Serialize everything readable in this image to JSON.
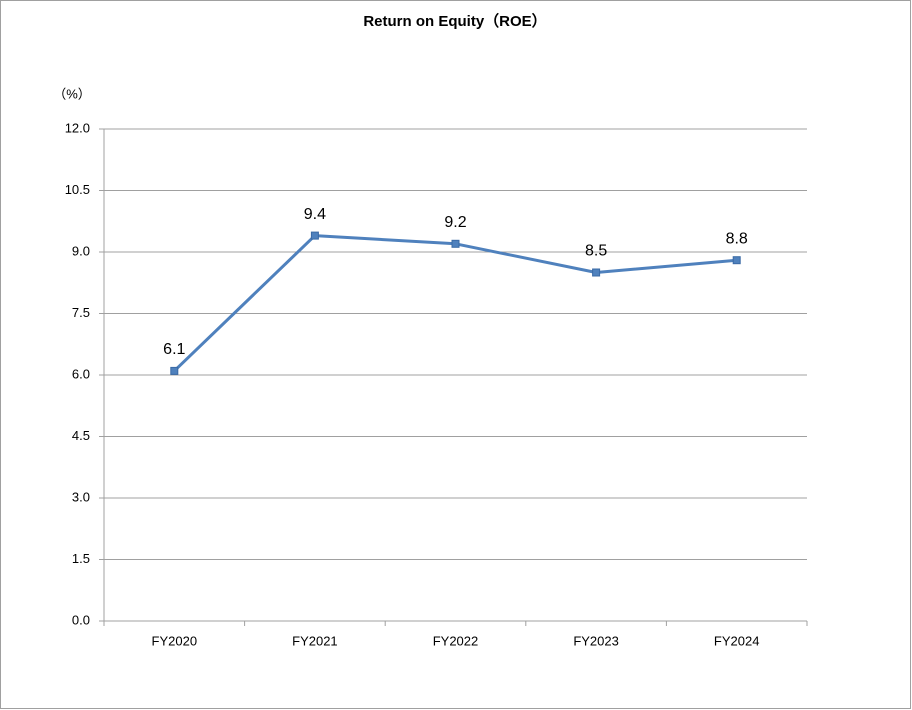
{
  "chart_data": {
    "type": "line",
    "title": "Return on Equity（ROE）",
    "y_unit": "（%）",
    "categories": [
      "FY2020",
      "FY2021",
      "FY2022",
      "FY2023",
      "FY2024"
    ],
    "series": [
      {
        "name": "ROE",
        "color": "#4f81bd",
        "values": [
          6.1,
          9.4,
          9.2,
          8.5,
          8.8
        ]
      }
    ],
    "ylim": [
      0,
      12
    ],
    "yticks": [
      {
        "value": 0,
        "label": "0.0"
      },
      1.5,
      {
        "value": 3,
        "label": "3.0"
      },
      4.5,
      {
        "value": 6,
        "label": "6.0"
      },
      7.5,
      {
        "value": 9,
        "label": "9.0"
      },
      10.5,
      {
        "value": 12,
        "label": "12.0"
      }
    ],
    "grid": true,
    "legend": false
  }
}
